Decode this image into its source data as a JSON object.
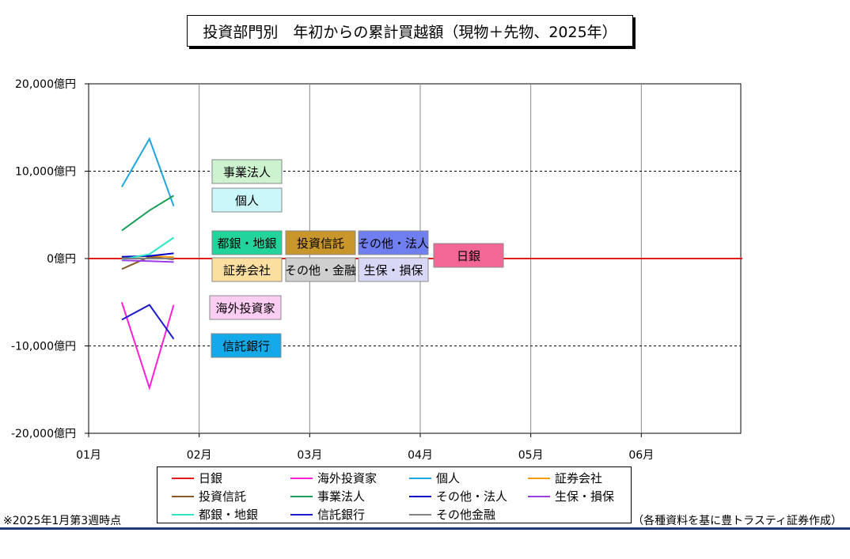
{
  "title": "投資部門別　年初からの累計買越額（現物＋先物、2025年）",
  "footnote_left": "※2025年1月第3週時点",
  "footnote_right": "（各種資料を基に豊トラスティ証券作成）",
  "chart_data": {
    "type": "line",
    "title": "投資部門別　年初からの累計買越額（現物＋先物、2025年）",
    "unit": "億円",
    "ylim": [
      -20000,
      20000
    ],
    "yticks": [
      20000,
      10000,
      0,
      -10000,
      -20000
    ],
    "ytick_labels": [
      "20,000億円",
      "10,000億円",
      "0億円",
      "-10,000億円",
      "-20,000億円"
    ],
    "xlim": [
      1,
      6.9
    ],
    "xticks": [
      1,
      2,
      3,
      4,
      5,
      6
    ],
    "xtick_labels": [
      "01月",
      "02月",
      "03月",
      "04月",
      "05月",
      "06月"
    ],
    "x": [
      1.3,
      1.55,
      1.77
    ],
    "grid": "dashed horizontal at ±10,000; vertical monthly gridlines",
    "legend_placement": "bottom",
    "series": [
      {
        "name": "日銀",
        "color": "#e31a1c",
        "values": [
          0,
          0,
          0
        ],
        "full_width": true
      },
      {
        "name": "海外投資家",
        "color": "#ff1fd2",
        "values": [
          -5000,
          -14800,
          -5300
        ]
      },
      {
        "name": "個人",
        "color": "#1fa6e0",
        "values": [
          8200,
          13700,
          6000
        ]
      },
      {
        "name": "証券会社",
        "color": "#f39c12",
        "values": [
          100,
          300,
          150
        ]
      },
      {
        "name": "投資信託",
        "color": "#8b5a2b",
        "values": [
          -1200,
          200,
          -100
        ]
      },
      {
        "name": "事業法人",
        "color": "#1a9d5a",
        "values": [
          3200,
          5500,
          7200
        ]
      },
      {
        "name": "その他・法人",
        "color": "#0000c8",
        "values": [
          200,
          300,
          600
        ]
      },
      {
        "name": "生保・損保",
        "color": "#9b3ce6",
        "values": [
          -200,
          -300,
          -400
        ]
      },
      {
        "name": "都銀・地銀",
        "color": "#2ee6c9",
        "values": [
          -100,
          500,
          2400
        ]
      },
      {
        "name": "信託銀行",
        "color": "#1a1ad0",
        "values": [
          -7000,
          -5300,
          -9200
        ]
      },
      {
        "name": "その他金融",
        "color": "#808080",
        "values": [
          0,
          0,
          0
        ]
      }
    ],
    "annotations": [
      {
        "label": "事業法人",
        "bg": "#ccf2d0"
      },
      {
        "label": "個人",
        "bg": "#ccf7fa"
      },
      {
        "label": "都銀・地銀",
        "bg": "#22d39c"
      },
      {
        "label": "証券会社",
        "bg": "#fbdfa0"
      },
      {
        "label": "投資信託",
        "bg": "#c8962a"
      },
      {
        "label": "その他・金融",
        "bg": "#cfcfcf"
      },
      {
        "label": "その他・法人",
        "bg": "#6f7ff0"
      },
      {
        "label": "生保・損保",
        "bg": "#d8d8f6"
      },
      {
        "label": "日銀",
        "bg": "#f26796"
      },
      {
        "label": "海外投資家",
        "bg": "#fccdf3"
      },
      {
        "label": "信託銀行",
        "bg": "#14aaea"
      }
    ],
    "legend": [
      "日銀",
      "海外投資家",
      "個人",
      "証券会社",
      "投資信託",
      "事業法人",
      "その他・法人",
      "生保・損保",
      "都銀・地銀",
      "信託銀行",
      "その他金融"
    ]
  }
}
